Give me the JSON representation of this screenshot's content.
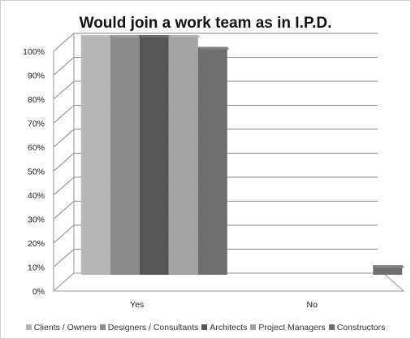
{
  "chart_data": {
    "type": "bar",
    "title": "Would join a work team as in I.P.D.",
    "xlabel": "",
    "ylabel": "",
    "categories": [
      "Yes",
      "No"
    ],
    "ylim": [
      0,
      100
    ],
    "yticks": [
      "0%",
      "10%",
      "20%",
      "30%",
      "40%",
      "50%",
      "60%",
      "70%",
      "80%",
      "90%",
      "100%"
    ],
    "grid": true,
    "legend_position": "bottom",
    "series": [
      {
        "name": "Clients / Owners",
        "values": [
          100,
          0
        ],
        "color": "#b5b5b5"
      },
      {
        "name": "Designers / Consultants",
        "values": [
          100,
          0
        ],
        "color": "#8c8c8c"
      },
      {
        "name": "Architects",
        "values": [
          100,
          0
        ],
        "color": "#555555"
      },
      {
        "name": "Project Managers",
        "values": [
          100,
          0
        ],
        "color": "#a3a3a3"
      },
      {
        "name": "Constructors",
        "values": [
          95,
          4
        ],
        "color": "#6f6f6f"
      }
    ]
  }
}
